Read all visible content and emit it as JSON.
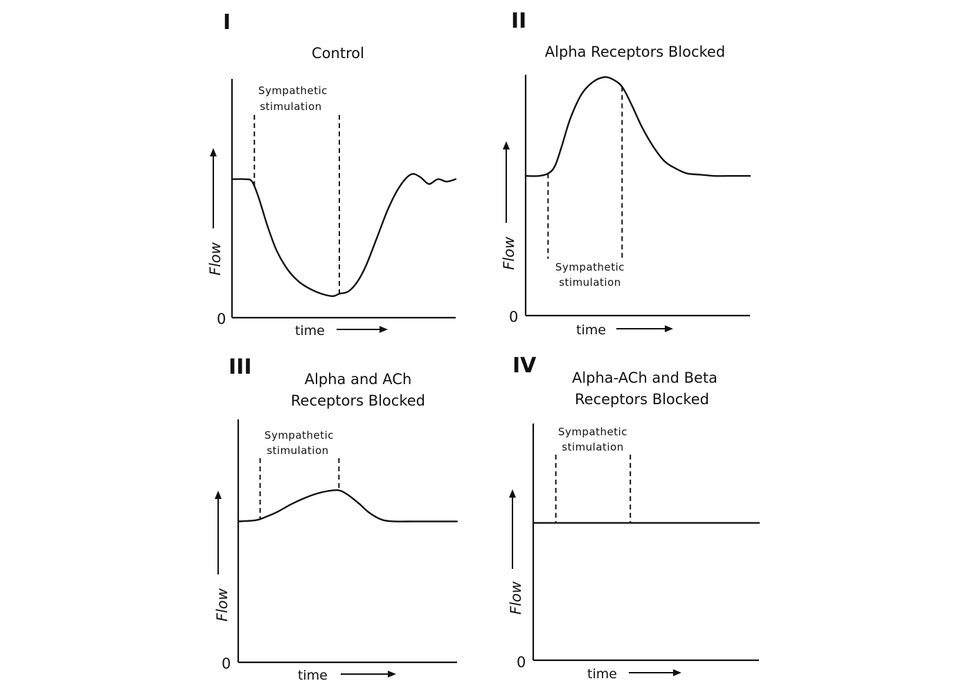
{
  "chart_data": [
    {
      "type": "line",
      "panel": "I",
      "title": "Control",
      "xlabel": "time",
      "ylabel": "Flow",
      "y_origin_label": "0",
      "annotation": "Sympathetic stimulation",
      "stimulation": {
        "start": 10,
        "end": 48
      },
      "xlim": [
        0,
        100
      ],
      "ylim": [
        0,
        100
      ],
      "series": [
        {
          "x": [
            0,
            6,
            9,
            12,
            16,
            20,
            25,
            30,
            35,
            40,
            45,
            48,
            52,
            56,
            60,
            65,
            70,
            75,
            80,
            84,
            88,
            92,
            96,
            100
          ],
          "y": [
            58,
            58,
            57,
            50,
            38,
            28,
            20,
            15,
            12,
            10,
            9,
            10,
            11,
            15,
            22,
            34,
            46,
            55,
            60,
            59,
            56,
            58,
            57,
            58
          ]
        }
      ]
    },
    {
      "type": "line",
      "panel": "II",
      "title": "Alpha Receptors Blocked",
      "xlabel": "time",
      "ylabel": "Flow",
      "y_origin_label": "0",
      "annotation": "Sympathetic stimulation",
      "stimulation": {
        "start": 10,
        "end": 43
      },
      "xlim": [
        0,
        100
      ],
      "ylim": [
        0,
        100
      ],
      "series": [
        {
          "x": [
            0,
            6,
            10,
            13,
            16,
            20,
            25,
            30,
            35,
            39,
            43,
            47,
            52,
            57,
            62,
            67,
            72,
            78,
            84,
            90,
            95,
            100
          ],
          "y": [
            58,
            58,
            59,
            62,
            70,
            82,
            92,
            97,
            99,
            98,
            95,
            88,
            78,
            70,
            64,
            61,
            59,
            58.5,
            58,
            58,
            58,
            58
          ]
        }
      ]
    },
    {
      "type": "line",
      "panel": "III",
      "title": "Alpha and ACh Receptors Blocked",
      "xlabel": "time",
      "ylabel": "Flow",
      "y_origin_label": "0",
      "annotation": "Sympathetic stimulation",
      "stimulation": {
        "start": 10,
        "end": 46
      },
      "xlim": [
        0,
        100
      ],
      "ylim": [
        0,
        100
      ],
      "series": [
        {
          "x": [
            0,
            8,
            13,
            18,
            24,
            30,
            36,
            41,
            46,
            50,
            55,
            60,
            66,
            72,
            80,
            90,
            100
          ],
          "y": [
            58,
            58.5,
            60,
            62,
            65,
            67.5,
            69.5,
            70.5,
            70.8,
            69,
            65.5,
            61.5,
            58.6,
            58,
            58,
            58,
            58
          ]
        }
      ]
    },
    {
      "type": "line",
      "panel": "IV",
      "title": "Alpha-ACh and Beta Receptors Blocked",
      "xlabel": "time",
      "ylabel": "Flow",
      "y_origin_label": "0",
      "annotation": "Sympathetic stimulation",
      "stimulation": {
        "start": 10,
        "end": 43
      },
      "xlim": [
        0,
        100
      ],
      "ylim": [
        0,
        100
      ],
      "series": [
        {
          "x": [
            0,
            100
          ],
          "y": [
            58,
            58
          ]
        }
      ]
    }
  ],
  "panels": [
    {
      "numeral": "I",
      "title_lines": [
        "Control"
      ],
      "stim_lines": [
        "Sympathetic",
        "stimulation"
      ],
      "xlabel": "time",
      "ylabel": "Flow",
      "zero": "0"
    },
    {
      "numeral": "II",
      "title_lines": [
        "Alpha Receptors Blocked"
      ],
      "stim_lines": [
        "Sympathetic",
        "stimulation"
      ],
      "xlabel": "time",
      "ylabel": "Flow",
      "zero": "0"
    },
    {
      "numeral": "III",
      "title_lines": [
        "Alpha and ACh",
        "Receptors Blocked"
      ],
      "stim_lines": [
        "Sympathetic",
        "stimulation"
      ],
      "xlabel": "time",
      "ylabel": "Flow",
      "zero": "0"
    },
    {
      "numeral": "IV",
      "title_lines": [
        "Alpha-ACh and Beta",
        "Receptors Blocked"
      ],
      "stim_lines": [
        "Sympathetic",
        "stimulation"
      ],
      "xlabel": "time",
      "ylabel": "Flow",
      "zero": "0"
    }
  ]
}
